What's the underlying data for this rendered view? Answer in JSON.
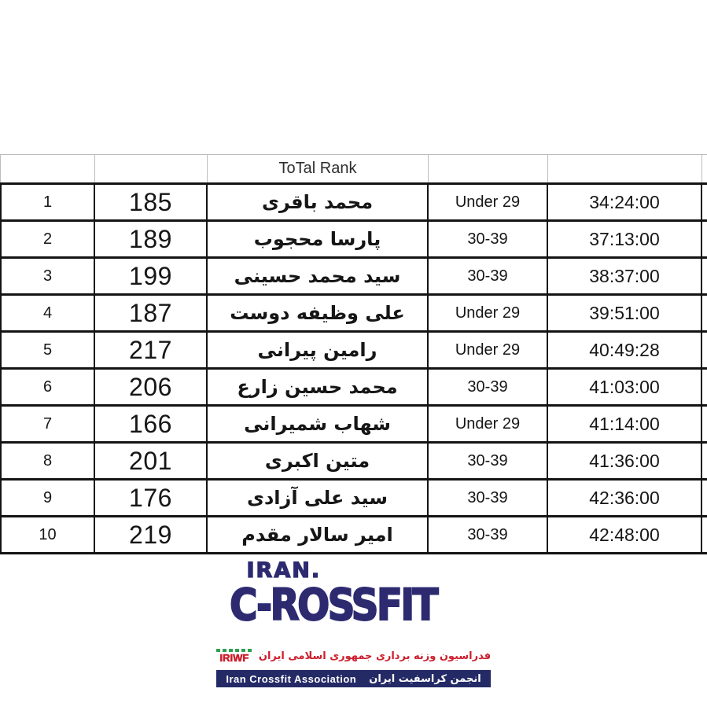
{
  "table": {
    "header_label": "ToTal Rank",
    "rows": [
      {
        "rank": "1",
        "score": "185",
        "name": "محمد باقری",
        "category": "Under 29",
        "time": "34:24:00"
      },
      {
        "rank": "2",
        "score": "189",
        "name": "پارسا محجوب",
        "category": "30-39",
        "time": "37:13:00"
      },
      {
        "rank": "3",
        "score": "199",
        "name": "سید محمد حسینی",
        "category": "30-39",
        "time": "38:37:00"
      },
      {
        "rank": "4",
        "score": "187",
        "name": "علی وظیفه دوست",
        "category": "Under 29",
        "time": "39:51:00"
      },
      {
        "rank": "5",
        "score": "217",
        "name": "رامین پیرانی",
        "category": "Under 29",
        "time": "40:49:28"
      },
      {
        "rank": "6",
        "score": "206",
        "name": "محمد حسین زارع",
        "category": "30-39",
        "time": "41:03:00"
      },
      {
        "rank": "7",
        "score": "166",
        "name": "شهاب  شمیرانی",
        "category": "Under 29",
        "time": "41:14:00"
      },
      {
        "rank": "8",
        "score": "201",
        "name": "متین اکبری",
        "category": "30-39",
        "time": "41:36:00"
      },
      {
        "rank": "9",
        "score": "176",
        "name": "سید علی آزادی",
        "category": "30-39",
        "time": "42:36:00"
      },
      {
        "rank": "10",
        "score": "219",
        "name": "امیر سالار مقدم",
        "category": "30-39",
        "time": "42:48:00"
      }
    ]
  },
  "branding": {
    "logo_line1": "IRAN.",
    "logo_line2": "C-ROSSFIT",
    "federation_mark": "IRIWF",
    "federation_text_fa": "فدراسیون وزنه برداری جمهوری اسلامی ایران",
    "association_text_en": "Iran Crossfit Association",
    "association_text_fa": "انجمن کراسفیت ایران"
  },
  "colors": {
    "logo_navy": "#2d2a70",
    "banner_navy": "#242a66",
    "federation_red": "#cc1f2c",
    "federation_green": "#2f9e4e",
    "table_border_black": "#141414",
    "grid_gray": "#bdbdbd"
  }
}
